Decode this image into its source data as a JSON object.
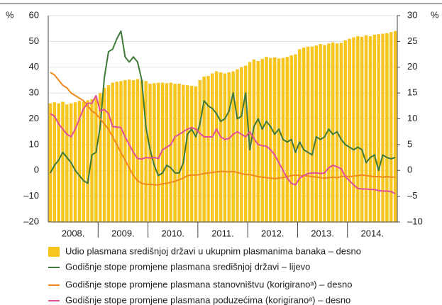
{
  "chart_data": {
    "type": "bar",
    "y_unit": "%",
    "y2_unit": "%",
    "categories": [
      null,
      null,
      null,
      null,
      null,
      null,
      "2008.",
      null,
      null,
      null,
      null,
      null,
      null,
      null,
      null,
      null,
      null,
      null,
      "2009.",
      null,
      null,
      null,
      null,
      null,
      null,
      null,
      null,
      null,
      null,
      null,
      "2010.",
      null,
      null,
      null,
      null,
      null,
      null,
      null,
      null,
      null,
      null,
      null,
      "2011.",
      null,
      null,
      null,
      null,
      null,
      null,
      null,
      null,
      null,
      null,
      null,
      "2012.",
      null,
      null,
      null,
      null,
      null,
      null,
      null,
      null,
      null,
      null,
      null,
      "2013.",
      null,
      null,
      null,
      null,
      null,
      null,
      null,
      null,
      null,
      null,
      null,
      "2014.",
      null,
      null,
      null,
      null,
      null
    ],
    "ylim": [
      -20,
      60
    ],
    "yticks": [
      {
        "value": -20,
        "label": "–20"
      },
      {
        "value": -10,
        "label": "–10"
      },
      0,
      10,
      20,
      30,
      40,
      50,
      60
    ],
    "y2lim": [
      -10,
      30
    ],
    "y2ticks": [
      {
        "value": -10,
        "label": "–10"
      },
      {
        "value": -5,
        "label": "–5"
      },
      0,
      5,
      10,
      15,
      20,
      25,
      30
    ],
    "grid": true,
    "series": [
      {
        "name": "Udio plasmana središnjoj državi u ukupnim plasmanima banaka – desno",
        "type": "bar",
        "axis": "y2",
        "color": "#f7c51e",
        "values": [
          13,
          13.2,
          13,
          13.3,
          12.8,
          13,
          13.2,
          13.5,
          13.3,
          13.6,
          13.8,
          14,
          15,
          16,
          16.5,
          17,
          17.2,
          17.3,
          17.5,
          17.6,
          17.5,
          17.7,
          17.5,
          17.3,
          16.8,
          16.9,
          17,
          17,
          16.9,
          17,
          16.8,
          16.8,
          16.6,
          16.5,
          16.4,
          16.3,
          17.5,
          18.2,
          18.3,
          18.8,
          19.2,
          19,
          18.8,
          19,
          19.2,
          19.6,
          20,
          20.3,
          21,
          21.5,
          21.2,
          21.6,
          22,
          21.8,
          21.9,
          21.7,
          21.8,
          22,
          22.3,
          22.5,
          23.5,
          23.8,
          24,
          24,
          24.2,
          24.5,
          24.3,
          24.6,
          24.8,
          24.6,
          24.7,
          25.2,
          25.5,
          25.8,
          26,
          25.9,
          26.2,
          26,
          26.3,
          26.4,
          26.5,
          26.6,
          26.8,
          27
        ]
      },
      {
        "name": "Godišnje stope promjene plasmana središnjoj državi – lijevo",
        "type": "line",
        "axis": "y",
        "color": "#3f7a3a",
        "values": [
          -1,
          2,
          4,
          7,
          5,
          3,
          0,
          -2,
          -4,
          -5,
          6,
          7,
          17,
          36,
          46,
          47,
          51,
          54,
          44,
          42,
          44,
          42,
          35,
          17,
          8,
          2,
          -2,
          -1,
          2,
          1,
          -1,
          -1,
          3,
          14,
          16,
          13,
          18,
          27,
          25,
          24,
          22,
          19,
          20,
          23,
          30,
          20,
          21,
          30,
          8,
          17,
          20,
          16,
          19,
          17,
          14,
          16,
          12,
          11,
          12,
          7,
          11,
          8,
          7,
          6,
          13,
          12,
          13,
          16,
          14,
          15,
          12,
          10,
          9,
          8,
          9,
          8,
          3,
          5,
          6,
          0,
          6,
          5,
          4.5,
          5
        ]
      },
      {
        "name": "Godišnje stope promjene plasmana stanovništvu (korigiranoᵃ) – desno",
        "type": "line",
        "axis": "y2",
        "color": "#f08a1c",
        "values": [
          19,
          18.5,
          17.5,
          16.5,
          16,
          15,
          14.5,
          14,
          13.5,
          12.5,
          11.5,
          11,
          10,
          9,
          8,
          6.5,
          5,
          3.5,
          2,
          0.5,
          -1,
          -2,
          -2.5,
          -2.7,
          -2.7,
          -2.8,
          -2.8,
          -2.6,
          -2.5,
          -2.3,
          -2.1,
          -1.8,
          -1.5,
          -1,
          -0.9,
          -0.9,
          -0.8,
          -0.6,
          -0.5,
          -0.4,
          -0.3,
          -0.2,
          -0.2,
          -0.3,
          -0.2,
          -0.4,
          -0.6,
          -0.8,
          -0.8,
          -1,
          -1.2,
          -1.3,
          -1.4,
          -1.5,
          -1.6,
          -1.5,
          -1.4,
          -1.2,
          -1,
          -0.9,
          -1,
          -1,
          -1.1,
          -1.2,
          -1.3,
          -1.4,
          -1.5,
          -1.4,
          -1.3,
          -1.4,
          -1.2,
          -1.1,
          -1.2,
          -1.1,
          -1,
          -0.9,
          -1,
          -1.1,
          -1.2,
          -1.2,
          -1.3,
          -1.2,
          -1.3,
          -1.3
        ]
      },
      {
        "name": "Godišnje stope promjene plasmana poduzećima (korigiranoᵃ) – desno",
        "type": "line",
        "axis": "y2",
        "color": "#e0509a",
        "values": [
          11,
          10.5,
          9,
          8,
          7,
          6.5,
          8,
          10,
          12,
          13,
          13,
          14.5,
          11.5,
          11.8,
          11,
          8.5,
          8.4,
          8.3,
          6.5,
          5,
          3.5,
          2.3,
          2.2,
          2.5,
          2.4,
          2.5,
          2.3,
          4,
          4.5,
          5,
          6.5,
          7,
          7.5,
          8,
          8.3,
          8,
          7.2,
          6.5,
          6.5,
          6.5,
          8,
          6.5,
          6,
          6.2,
          7,
          7.5,
          7,
          6.5,
          7.5,
          6.2,
          5,
          4.8,
          4.7,
          4,
          3,
          1.5,
          0,
          -1.5,
          -2.5,
          -2.8,
          -1.5,
          -1,
          -0.6,
          -0.5,
          -0.5,
          -0.6,
          -0.5,
          0.5,
          1,
          0.7,
          0.3,
          -1.2,
          -2,
          -2.8,
          -3.5,
          -3.6,
          -3.6,
          -3.7,
          -3.7,
          -3.9,
          -4,
          -4,
          -4.1,
          -4.5
        ]
      }
    ]
  }
}
